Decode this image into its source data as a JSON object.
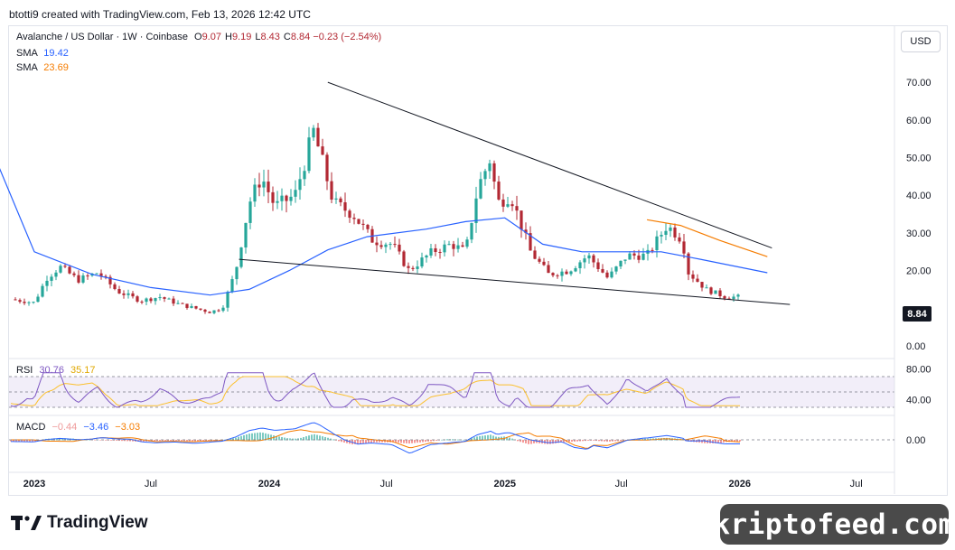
{
  "header": {
    "attribution": "btotti9 created with TradingView.com, Feb 13, 2026 12:42 UTC"
  },
  "legend": {
    "symbol": "Avalanche / US Dollar · 1W · Coinbase",
    "ohlc": [
      {
        "k": "O",
        "v": "9.07"
      },
      {
        "k": "H",
        "v": "9.19"
      },
      {
        "k": "L",
        "v": "8.43"
      },
      {
        "k": "C",
        "v": "8.84"
      }
    ],
    "change": "−0.23 (−2.54%)",
    "sma1_label": "SMA",
    "sma1_value": "19.42",
    "sma2_label": "SMA",
    "sma2_value": "23.69"
  },
  "currency_button": "USD",
  "last_price": "8.84",
  "rsi_legend": {
    "label": "RSI",
    "v1": "30.76",
    "v2": "35.17"
  },
  "macd_legend": {
    "label": "MACD",
    "v1": "−0.44",
    "v2": "−3.46",
    "v3": "−3.03"
  },
  "brand": "TradingView",
  "watermark": "kriptofeed.com",
  "colors": {
    "up": "#26a69a",
    "down": "#b22833",
    "sma_blue": "#2962ff",
    "sma_orange": "#f57c00",
    "rsi": "#7e57c2",
    "rsi_ma": "#fbc02d",
    "trend": "#131722"
  },
  "chart_data": {
    "type": "candlestick",
    "title": "Avalanche / US Dollar · 1W · Coinbase",
    "y_axis": {
      "ticks": [
        "70.00",
        "60.00",
        "50.00",
        "40.00",
        "30.00",
        "20.00",
        "0.00"
      ],
      "range": [
        0,
        75
      ]
    },
    "x_axis": {
      "ticks": [
        "2023",
        "Jul",
        "2024",
        "Jul",
        "2025",
        "Jul",
        "2026",
        "Jul"
      ]
    },
    "price_path": [
      [
        "2022-11-01",
        17
      ],
      [
        "2022-11-20",
        12.5
      ],
      [
        "2023-01-01",
        11.5
      ],
      [
        "2023-01-20",
        18
      ],
      [
        "2023-02-10",
        21
      ],
      [
        "2023-03-10",
        17.5
      ],
      [
        "2023-04-10",
        19.5
      ],
      [
        "2023-05-10",
        14.5
      ],
      [
        "2023-06-15",
        12
      ],
      [
        "2023-07-15",
        13
      ],
      [
        "2023-08-15",
        11
      ],
      [
        "2023-10-01",
        9
      ],
      [
        "2023-10-20",
        10
      ],
      [
        "2023-11-10",
        20
      ],
      [
        "2023-12-01",
        38
      ],
      [
        "2023-12-20",
        45
      ],
      [
        "2024-01-10",
        37
      ],
      [
        "2024-02-10",
        40
      ],
      [
        "2024-03-10",
        57
      ],
      [
        "2024-04-10",
        38
      ],
      [
        "2024-05-10",
        35
      ],
      [
        "2024-06-10",
        28
      ],
      [
        "2024-07-10",
        27
      ],
      [
        "2024-08-05",
        20
      ],
      [
        "2024-09-10",
        25
      ],
      [
        "2024-10-10",
        27
      ],
      [
        "2024-11-01",
        25
      ],
      [
        "2024-11-20",
        42
      ],
      [
        "2024-12-10",
        50
      ],
      [
        "2024-12-20",
        38
      ],
      [
        "2025-01-10",
        40
      ],
      [
        "2025-02-10",
        25
      ],
      [
        "2025-03-10",
        19
      ],
      [
        "2025-04-10",
        20
      ],
      [
        "2025-05-10",
        24
      ],
      [
        "2025-06-10",
        18
      ],
      [
        "2025-07-10",
        24
      ],
      [
        "2025-08-10",
        24
      ],
      [
        "2025-09-10",
        32
      ],
      [
        "2025-10-05",
        28
      ],
      [
        "2025-10-10",
        20
      ],
      [
        "2025-11-10",
        15
      ],
      [
        "2025-12-10",
        13
      ],
      [
        "2026-01-10",
        13
      ],
      [
        "2026-02-13",
        8.84
      ]
    ],
    "sma_blue_path": [
      [
        "2022-11-01",
        50
      ],
      [
        "2023-01-01",
        25
      ],
      [
        "2023-04-01",
        19
      ],
      [
        "2023-07-01",
        15.5
      ],
      [
        "2023-10-01",
        13.5
      ],
      [
        "2023-12-01",
        15
      ],
      [
        "2024-02-01",
        20
      ],
      [
        "2024-04-01",
        25.5
      ],
      [
        "2024-06-01",
        29
      ],
      [
        "2024-09-01",
        31
      ],
      [
        "2024-11-01",
        33
      ],
      [
        "2025-01-01",
        34
      ],
      [
        "2025-03-01",
        27
      ],
      [
        "2025-05-01",
        25
      ],
      [
        "2025-07-01",
        25
      ],
      [
        "2025-09-01",
        25
      ],
      [
        "2025-11-01",
        23
      ],
      [
        "2026-02-13",
        19.42
      ]
    ],
    "sma_orange_path": [
      [
        "2025-08-10",
        33.5
      ],
      [
        "2025-10-01",
        32
      ],
      [
        "2025-12-01",
        28
      ],
      [
        "2026-02-13",
        23.69
      ]
    ],
    "trendlines": [
      {
        "from": [
          "2024-04-01",
          70
        ],
        "to": [
          "2026-02-20",
          26
        ]
      },
      {
        "from": [
          "2023-11-15",
          23
        ],
        "to": [
          "2026-03-20",
          11
        ]
      }
    ],
    "rsi": {
      "upper": 70,
      "lower": 30,
      "last": 30.76,
      "ma_last": 35.17
    },
    "macd": {
      "macd_last": -3.46,
      "signal_last": -3.03,
      "hist_last": -0.44
    }
  }
}
